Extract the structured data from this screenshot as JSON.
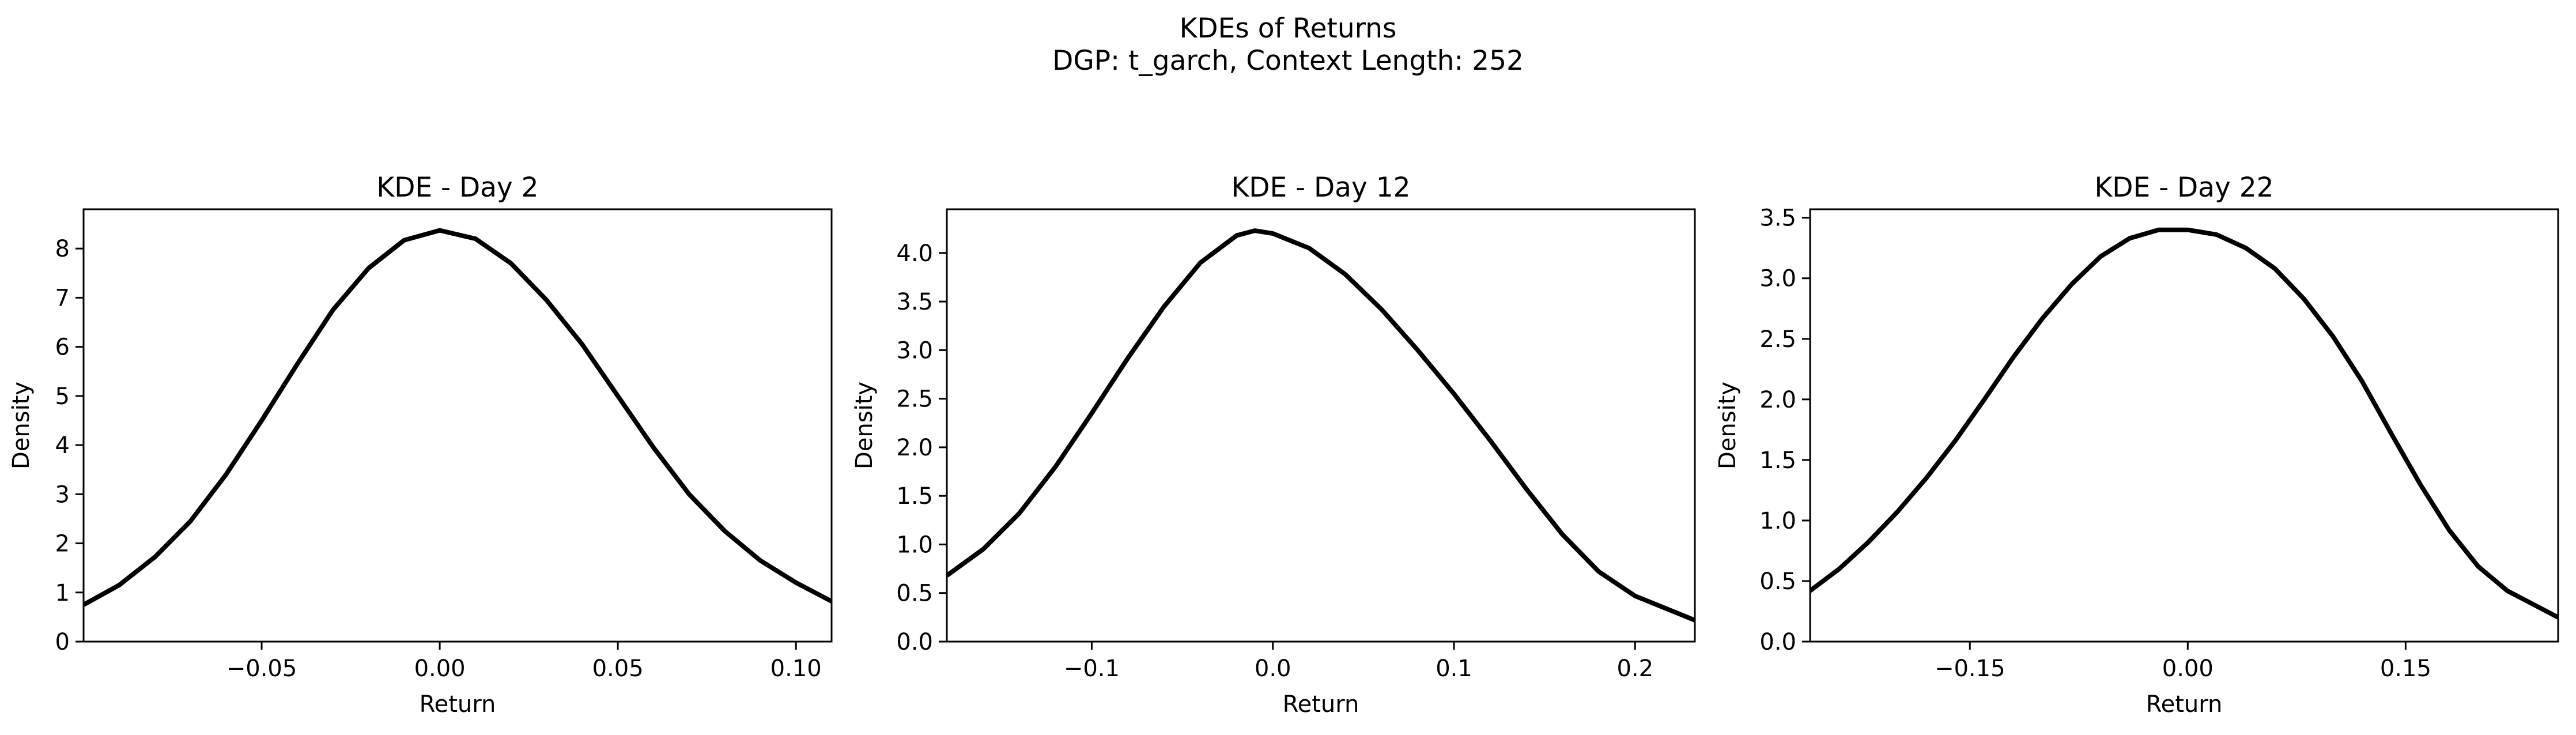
{
  "figure": {
    "title": "KDEs of Returns",
    "subtitle": "DGP: t_garch, Context Length: 252"
  },
  "chart_data": [
    {
      "type": "line",
      "title": "KDE - Day 2",
      "xlabel": "Return",
      "ylabel": "Density",
      "xlim": [
        -0.1,
        0.11
      ],
      "ylim": [
        0,
        8.8
      ],
      "xticks": [
        -0.05,
        0.0,
        0.05,
        0.1
      ],
      "xtick_labels": [
        "−0.05",
        "0.00",
        "0.05",
        "0.10"
      ],
      "yticks": [
        0,
        1,
        2,
        3,
        4,
        5,
        6,
        7,
        8
      ],
      "ytick_labels": [
        "0",
        "1",
        "2",
        "3",
        "4",
        "5",
        "6",
        "7",
        "8"
      ],
      "grid": false,
      "series": [
        {
          "color": "#000000",
          "x": [
            -0.1,
            -0.09,
            -0.08,
            -0.07,
            -0.06,
            -0.05,
            -0.04,
            -0.03,
            -0.02,
            -0.01,
            0.0,
            0.01,
            0.02,
            0.03,
            0.04,
            0.05,
            0.06,
            0.07,
            0.08,
            0.09,
            0.1,
            0.11
          ],
          "y": [
            0.75,
            1.15,
            1.72,
            2.45,
            3.4,
            4.5,
            5.65,
            6.75,
            7.6,
            8.17,
            8.37,
            8.2,
            7.7,
            6.95,
            6.05,
            5.0,
            3.95,
            3.0,
            2.25,
            1.65,
            1.2,
            0.82
          ]
        }
      ]
    },
    {
      "type": "line",
      "title": "KDE - Day 12",
      "xlabel": "Return",
      "ylabel": "Density",
      "xlim": [
        -0.18,
        0.233
      ],
      "ylim": [
        0,
        4.45
      ],
      "xticks": [
        -0.1,
        0.0,
        0.1,
        0.2
      ],
      "xtick_labels": [
        "−0.1",
        "0.0",
        "0.1",
        "0.2"
      ],
      "yticks": [
        0,
        0.5,
        1.0,
        1.5,
        2.0,
        2.5,
        3.0,
        3.5,
        4.0
      ],
      "ytick_labels": [
        "0.0",
        "0.5",
        "1.0",
        "1.5",
        "2.0",
        "2.5",
        "3.0",
        "3.5",
        "4.0"
      ],
      "grid": false,
      "series": [
        {
          "color": "#000000",
          "x": [
            -0.18,
            -0.16,
            -0.14,
            -0.12,
            -0.1,
            -0.08,
            -0.06,
            -0.04,
            -0.02,
            -0.01,
            0.0,
            0.02,
            0.04,
            0.06,
            0.08,
            0.1,
            0.12,
            0.14,
            0.16,
            0.18,
            0.2,
            0.233
          ],
          "y": [
            0.68,
            0.95,
            1.32,
            1.8,
            2.35,
            2.92,
            3.45,
            3.9,
            4.18,
            4.23,
            4.2,
            4.05,
            3.78,
            3.42,
            3.0,
            2.55,
            2.07,
            1.57,
            1.1,
            0.72,
            0.47,
            0.22
          ]
        }
      ]
    },
    {
      "type": "line",
      "title": "KDE - Day 22",
      "xlabel": "Return",
      "ylabel": "Density",
      "xlim": [
        -0.26,
        0.255
      ],
      "ylim": [
        0,
        3.57
      ],
      "xticks": [
        -0.15,
        0.0,
        0.15
      ],
      "xtick_labels": [
        "−0.15",
        "0.00",
        "0.15"
      ],
      "yticks": [
        0,
        0.5,
        1.0,
        1.5,
        2.0,
        2.5,
        3.0,
        3.5
      ],
      "ytick_labels": [
        "0.0",
        "0.5",
        "1.0",
        "1.5",
        "2.0",
        "2.5",
        "3.0",
        "3.5"
      ],
      "grid": false,
      "series": [
        {
          "color": "#000000",
          "x": [
            -0.26,
            -0.24,
            -0.22,
            -0.2,
            -0.18,
            -0.16,
            -0.14,
            -0.12,
            -0.1,
            -0.08,
            -0.06,
            -0.04,
            -0.02,
            0.0,
            0.02,
            0.04,
            0.06,
            0.08,
            0.1,
            0.12,
            0.14,
            0.16,
            0.18,
            0.2,
            0.22,
            0.255
          ],
          "y": [
            0.42,
            0.6,
            0.82,
            1.07,
            1.35,
            1.66,
            2.0,
            2.35,
            2.67,
            2.95,
            3.18,
            3.33,
            3.4,
            3.4,
            3.36,
            3.25,
            3.08,
            2.83,
            2.52,
            2.15,
            1.72,
            1.3,
            0.92,
            0.62,
            0.42,
            0.2
          ]
        }
      ]
    }
  ]
}
